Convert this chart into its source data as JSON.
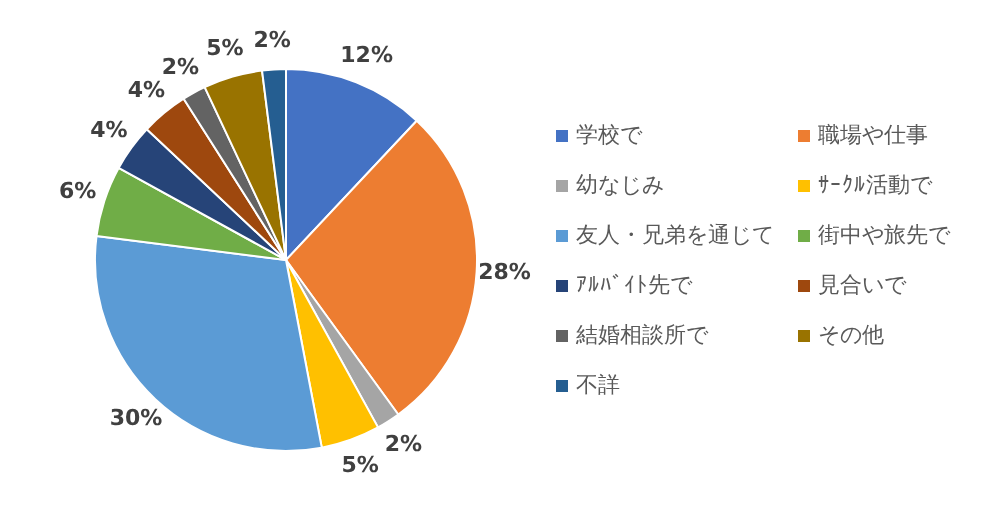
{
  "chart_data": {
    "type": "pie",
    "categories": [
      "学校で",
      "職場や仕事",
      "幼なじみ",
      "ｻｰｸﾙ活動で",
      "友人・兄弟を通じて",
      "街中や旅先で",
      "ｱﾙﾊﾞｲﾄ先で",
      "見合いで",
      "結婚相談所で",
      "その他",
      "不詳"
    ],
    "values": [
      12,
      28,
      2,
      5,
      30,
      6,
      4,
      4,
      2,
      5,
      2
    ],
    "colors": [
      "#4472c4",
      "#ed7d31",
      "#a5a5a5",
      "#ffc000",
      "#5b9bd5",
      "#70ad47",
      "#264478",
      "#9e480e",
      "#636363",
      "#997300",
      "#255e91"
    ],
    "value_labels": [
      "12%",
      "28%",
      "2%",
      "5%",
      "30%",
      "6%",
      "4%",
      "4%",
      "2%",
      "5%",
      "2%"
    ],
    "legend": "right"
  }
}
